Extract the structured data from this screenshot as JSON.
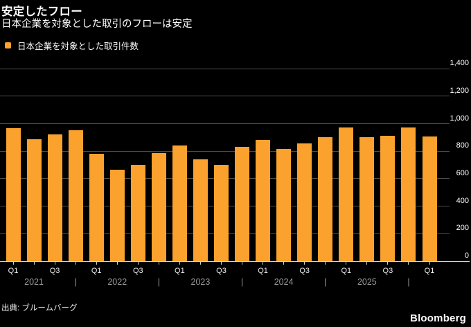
{
  "header": {
    "title": "安定したフロー",
    "subtitle": "日本企業を対象とした取引のフローは安定"
  },
  "legend": {
    "label": "日本企業を対象とした取引件数",
    "swatch_color": "#FAA22D"
  },
  "chart_data": {
    "type": "bar",
    "title": "安定したフロー",
    "subtitle": "日本企業を対象とした取引のフローは安定",
    "series_name": "日本企業を対象とした取引件数",
    "categories": [
      "2021 Q1",
      "2021 Q2",
      "2021 Q3",
      "2021 Q4",
      "2022 Q1",
      "2022 Q2",
      "2022 Q3",
      "2022 Q4",
      "2023 Q1",
      "2023 Q2",
      "2023 Q3",
      "2023 Q4",
      "2024 Q1",
      "2024 Q2",
      "2024 Q3",
      "2024 Q4",
      "2025 Q1",
      "2025 Q2",
      "2025 Q3",
      "2025 Q4",
      "2026 Q1"
    ],
    "values": [
      970,
      885,
      925,
      955,
      780,
      665,
      700,
      785,
      840,
      740,
      700,
      830,
      880,
      815,
      855,
      900,
      975,
      900,
      910,
      975,
      905
    ],
    "ylim": [
      0,
      1400
    ],
    "y_ticks": [
      0,
      200,
      400,
      600,
      800,
      1000,
      1200,
      1400
    ],
    "y_tick_labels": [
      "0",
      "200",
      "400",
      "600",
      "800",
      "1,000",
      "1,200",
      "1,400"
    ],
    "y_axis_side": "right",
    "grid": true,
    "legend_position": "top-left",
    "x_quarter_labels": [
      {
        "bar_index": 0,
        "text": "Q1"
      },
      {
        "bar_index": 2,
        "text": "Q3"
      },
      {
        "bar_index": 4,
        "text": "Q1"
      },
      {
        "bar_index": 6,
        "text": "Q3"
      },
      {
        "bar_index": 8,
        "text": "Q1"
      },
      {
        "bar_index": 10,
        "text": "Q3"
      },
      {
        "bar_index": 12,
        "text": "Q1"
      },
      {
        "bar_index": 14,
        "text": "Q3"
      },
      {
        "bar_index": 16,
        "text": "Q1"
      },
      {
        "bar_index": 18,
        "text": "Q3"
      },
      {
        "bar_index": 20,
        "text": "Q1"
      }
    ],
    "year_axis": {
      "labels": [
        {
          "text": "2021",
          "bar_index": 1
        },
        {
          "text": "2022",
          "bar_index": 5
        },
        {
          "text": "2023",
          "bar_index": 9
        },
        {
          "text": "2024",
          "bar_index": 13
        },
        {
          "text": "2025",
          "bar_index": 17
        }
      ],
      "separator_glyph": "|",
      "separators_at_bar_index": [
        3,
        7,
        11,
        15,
        19
      ]
    }
  },
  "footer": {
    "source": "出典: ブルームバーグ",
    "brand": "Bloomberg"
  },
  "colors": {
    "bar": "#FAA22D",
    "background": "#000000",
    "gridline": "#4f4f4f",
    "axis_line": "#d6d6d6",
    "tick": "#cfcfcf",
    "text_primary": "#ffffff",
    "text_secondary": "#9b9b9b"
  }
}
